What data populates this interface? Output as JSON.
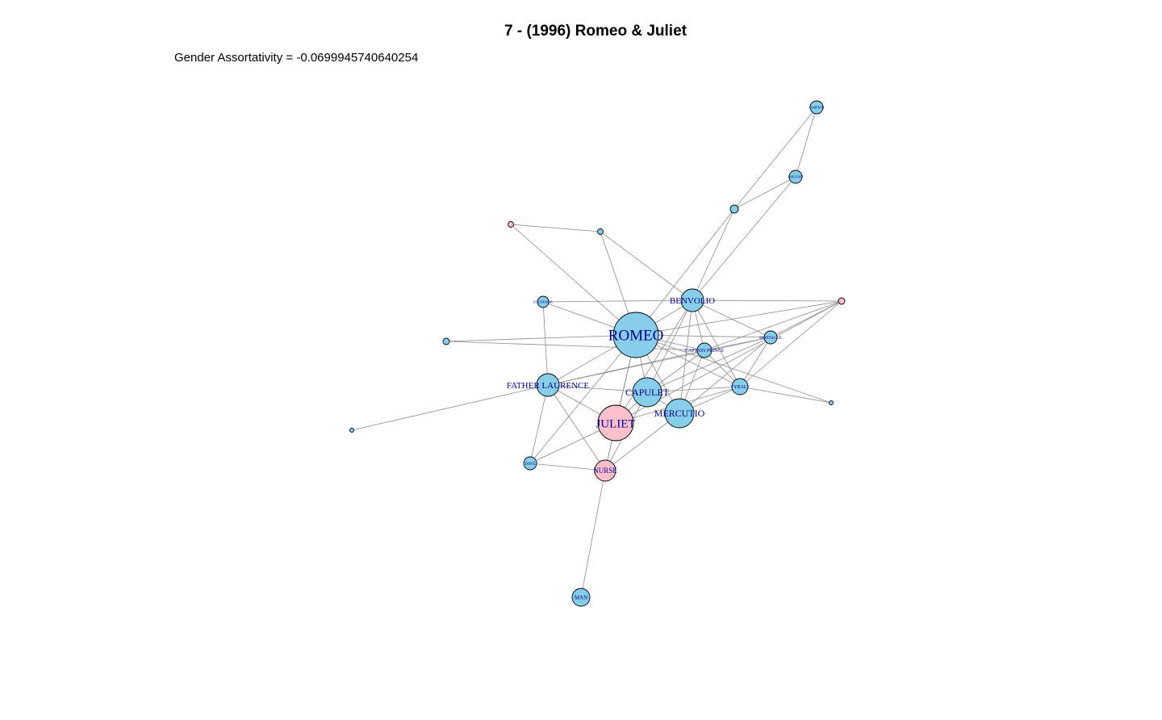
{
  "title": "7 - (1996) Romeo & Juliet",
  "subtitle": "Gender Assortativity = -0.0699945740640254",
  "colors": {
    "male": "#87CEEB",
    "female": "#FFC0CB",
    "edge": "#8c8c8c",
    "label": "#00008B"
  },
  "nodes": [
    {
      "id": "ROMEO",
      "label": "ROMEO",
      "gender": "male"
    },
    {
      "id": "JULIET",
      "label": "JULIET",
      "gender": "female"
    },
    {
      "id": "CAPULET",
      "label": "CAPULET",
      "gender": "male"
    },
    {
      "id": "MERCUTIO",
      "label": "MERCUTIO",
      "gender": "male"
    },
    {
      "id": "BENVOLIO",
      "label": "BENVOLIO",
      "gender": "male"
    },
    {
      "id": "FATHER LAURENCE",
      "label": "FATHER LAURENCE",
      "gender": "male"
    },
    {
      "id": "NURSE",
      "label": "NURSE",
      "gender": "female"
    },
    {
      "id": "CAPTAIN PRINCE",
      "label": "CAPTAIN PRINCE",
      "gender": "male"
    },
    {
      "id": "MONTAGUE",
      "label": "MONTAGUE",
      "gender": "male"
    },
    {
      "id": "TYBALT",
      "label": "TYBALT",
      "gender": "male"
    },
    {
      "id": "BALTHASAR",
      "label": "BALTHASAR",
      "gender": "male"
    },
    {
      "id": "DAVE",
      "label": "DAVE",
      "gender": "male"
    },
    {
      "id": "MAN",
      "label": "MAN",
      "gender": "male"
    },
    {
      "id": "SAMPSON",
      "label": "SAMPSON",
      "gender": "male"
    },
    {
      "id": "GREGORY",
      "label": "GREGORY",
      "gender": "male"
    },
    {
      "id": "ABRA",
      "label": "",
      "gender": "male"
    },
    {
      "id": "LADY_MONTAGUE",
      "label": "",
      "gender": "female"
    },
    {
      "id": "FEMALE_TOP",
      "label": "",
      "gender": "female"
    },
    {
      "id": "SMALL_TOP",
      "label": "",
      "gender": "male"
    },
    {
      "id": "OTHER_LEFT",
      "label": "",
      "gender": "male"
    },
    {
      "id": "SMALL_FARLEFT",
      "label": "",
      "gender": "male"
    },
    {
      "id": "SMALL_RIGHT",
      "label": "",
      "gender": "male"
    }
  ],
  "edges": [
    [
      "ROMEO",
      "JULIET"
    ],
    [
      "ROMEO",
      "CAPULET"
    ],
    [
      "ROMEO",
      "MERCUTIO"
    ],
    [
      "ROMEO",
      "BENVOLIO"
    ],
    [
      "ROMEO",
      "FATHER LAURENCE"
    ],
    [
      "ROMEO",
      "NURSE"
    ],
    [
      "ROMEO",
      "CAPTAIN PRINCE"
    ],
    [
      "ROMEO",
      "MONTAGUE"
    ],
    [
      "ROMEO",
      "TYBALT"
    ],
    [
      "ROMEO",
      "BALTHASAR"
    ],
    [
      "ROMEO",
      "FEMALE_TOP"
    ],
    [
      "ROMEO",
      "SMALL_TOP"
    ],
    [
      "ROMEO",
      "OTHER_LEFT"
    ],
    [
      "ROMEO",
      "LADY_MONTAGUE"
    ],
    [
      "ROMEO",
      "DAVE"
    ],
    [
      "BENVOLIO",
      "MERCUTIO"
    ],
    [
      "BENVOLIO",
      "CAPULET"
    ],
    [
      "BENVOLIO",
      "CAPTAIN PRINCE"
    ],
    [
      "BENVOLIO",
      "MONTAGUE"
    ],
    [
      "BENVOLIO",
      "TYBALT"
    ],
    [
      "BENVOLIO",
      "ABRA"
    ],
    [
      "BENVOLIO",
      "GREGORY"
    ],
    [
      "BENVOLIO",
      "SMALL_TOP"
    ],
    [
      "BENVOLIO",
      "BALTHASAR"
    ],
    [
      "BENVOLIO",
      "LADY_MONTAGUE"
    ],
    [
      "BENVOLIO",
      "JULIET"
    ],
    [
      "CAPULET",
      "JULIET"
    ],
    [
      "CAPULET",
      "MERCUTIO"
    ],
    [
      "CAPULET",
      "TYBALT"
    ],
    [
      "CAPULET",
      "NURSE"
    ],
    [
      "CAPULET",
      "FATHER LAURENCE"
    ],
    [
      "CAPULET",
      "MONTAGUE"
    ],
    [
      "CAPULET",
      "CAPTAIN PRINCE"
    ],
    [
      "MERCUTIO",
      "TYBALT"
    ],
    [
      "MERCUTIO",
      "CAPTAIN PRINCE"
    ],
    [
      "MERCUTIO",
      "NURSE"
    ],
    [
      "MERCUTIO",
      "MONTAGUE"
    ],
    [
      "JULIET",
      "NURSE"
    ],
    [
      "JULIET",
      "FATHER LAURENCE"
    ],
    [
      "JULIET",
      "DAVE"
    ],
    [
      "JULIET",
      "TYBALT"
    ],
    [
      "JULIET",
      "LADY_MONTAGUE"
    ],
    [
      "FATHER LAURENCE",
      "NURSE"
    ],
    [
      "FATHER LAURENCE",
      "DAVE"
    ],
    [
      "FATHER LAURENCE",
      "BALTHASAR"
    ],
    [
      "FATHER LAURENCE",
      "SMALL_FARLEFT"
    ],
    [
      "FATHER LAURENCE",
      "CAPTAIN PRINCE"
    ],
    [
      "FATHER LAURENCE",
      "MONTAGUE"
    ],
    [
      "NURSE",
      "DAVE"
    ],
    [
      "NURSE",
      "MAN"
    ],
    [
      "CAPTAIN PRINCE",
      "MONTAGUE"
    ],
    [
      "CAPTAIN PRINCE",
      "TYBALT"
    ],
    [
      "CAPTAIN PRINCE",
      "OTHER_LEFT"
    ],
    [
      "CAPTAIN PRINCE",
      "LADY_MONTAGUE"
    ],
    [
      "MONTAGUE",
      "LADY_MONTAGUE"
    ],
    [
      "TYBALT",
      "SMALL_RIGHT"
    ],
    [
      "TYBALT",
      "LADY_MONTAGUE"
    ],
    [
      "TYBALT",
      "MONTAGUE"
    ],
    [
      "SAMPSON",
      "GREGORY"
    ],
    [
      "SAMPSON",
      "ABRA"
    ],
    [
      "GREGORY",
      "ABRA"
    ],
    [
      "ABRA",
      "ROMEO"
    ],
    [
      "FEMALE_TOP",
      "SMALL_TOP"
    ],
    [
      "SMALL_RIGHT",
      "ROMEO"
    ]
  ]
}
